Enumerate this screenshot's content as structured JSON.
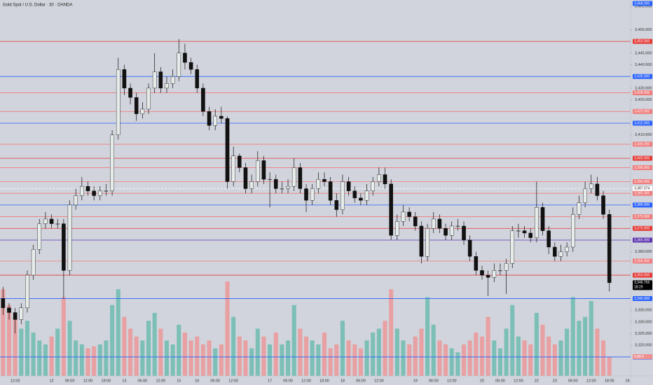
{
  "chart_data": {
    "type": "candlestick",
    "title": "Gold Spot / U.S. Dollar · 30 · OANDA",
    "ylim": [
      3306.9,
      3467.7
    ],
    "up_color": "#e6ece9",
    "down_color": "#111111",
    "yticks": [
      {
        "value": 3465,
        "label": "3,465.000"
      },
      {
        "value": 3455,
        "label": "3,455.000"
      },
      {
        "value": 3445,
        "label": "3,445.000"
      },
      {
        "value": 3440,
        "label": "3,440.000"
      },
      {
        "value": 3430,
        "label": "3,430.000"
      },
      {
        "value": 3425,
        "label": "3,425.000"
      },
      {
        "value": 3410,
        "label": "3,410.000"
      },
      {
        "value": 3360,
        "label": "3,360.000"
      },
      {
        "value": 3335,
        "label": "3,335.000"
      },
      {
        "value": 3330,
        "label": "3,330.000"
      },
      {
        "value": 3325,
        "label": "3,325.000"
      },
      {
        "value": 3320,
        "label": "3,320.000"
      }
    ],
    "levels": [
      {
        "value": 3468,
        "label": "3,468.000",
        "color": "#2962ff"
      },
      {
        "value": 3450,
        "label": "3,450.000",
        "color": "#e53935"
      },
      {
        "value": 3435,
        "label": "3,435.000",
        "color": "#2962ff"
      },
      {
        "value": 3428,
        "label": "3,428.000",
        "color": "#ef7b7b"
      },
      {
        "value": 3420,
        "label": "3,420.000",
        "color": "#ef7b7b"
      },
      {
        "value": 3415,
        "label": "3,415.000",
        "color": "#2962ff"
      },
      {
        "value": 3406,
        "label": "3,406.000",
        "color": "#ef7b7b"
      },
      {
        "value": 3400,
        "label": "3,400.000",
        "color": "#e53935"
      },
      {
        "value": 3396,
        "label": "3,396.000",
        "color": "#ef7b7b"
      },
      {
        "value": 3390,
        "label": "3,390.000",
        "color": "#ef7b7b"
      },
      {
        "value": 3385,
        "label": "3,385.000",
        "color": "#ef7b7b"
      },
      {
        "value": 3380,
        "label": "3,380.000",
        "color": "#2962ff"
      },
      {
        "value": 3375,
        "label": "3,375.000",
        "color": "#ef7b7b"
      },
      {
        "value": 3370,
        "label": "3,370.000",
        "color": "#e53935"
      },
      {
        "value": 3365,
        "label": "3,365.000",
        "color": "#5e35b1"
      },
      {
        "value": 3356,
        "label": "3,356.000",
        "color": "#ef7b7b"
      },
      {
        "value": 3350,
        "label": "3,350.000",
        "color": "#e53935"
      },
      {
        "value": 3340,
        "label": "3,340.000",
        "color": "#2962ff"
      },
      {
        "value": 3315,
        "label": "3,315.000",
        "color": "#2962ff"
      }
    ],
    "bid_line": {
      "value": 3387.074,
      "label": "3,387.074"
    },
    "price_tag": {
      "value": 3346.755,
      "label": "3,346.755",
      "countdown": "18:29"
    },
    "x": [
      null,
      null,
      "12:00",
      null,
      null,
      null,
      null,
      null,
      "12",
      null,
      null,
      "06:00",
      null,
      null,
      "12:00",
      null,
      null,
      "18:00",
      null,
      null,
      "13",
      null,
      null,
      "06:00",
      null,
      null,
      "12:00",
      null,
      null,
      "15",
      null,
      null,
      "16",
      null,
      null,
      "06:00",
      null,
      null,
      "12:00",
      null,
      null,
      null,
      null,
      null,
      "17",
      null,
      null,
      "06:00",
      null,
      null,
      "12:00",
      null,
      null,
      "18:00",
      null,
      null,
      "18",
      null,
      null,
      "06:00",
      null,
      null,
      "12:00",
      null,
      null,
      null,
      null,
      null,
      "19",
      null,
      null,
      "06:00",
      null,
      null,
      "12:00",
      null,
      null,
      null,
      null,
      "20",
      null,
      null,
      "06:00",
      null,
      null,
      "12:00",
      null,
      null,
      "22",
      null,
      null,
      "23",
      null,
      null,
      "06:00",
      null,
      null,
      "12:00",
      null,
      null,
      "18:00",
      null,
      null,
      "24"
    ],
    "candles": [
      [
        3340,
        3345,
        3333,
        3336
      ],
      [
        3336,
        3338,
        3331,
        3334
      ],
      [
        3334,
        3336,
        3325,
        3331
      ],
      [
        3331,
        3338,
        3329,
        3336
      ],
      [
        3336,
        3352,
        3334,
        3350
      ],
      [
        3350,
        3363,
        3348,
        3361
      ],
      [
        3361,
        3374,
        3359,
        3372
      ],
      [
        3372,
        3377,
        3370,
        3374
      ],
      [
        3374,
        3376,
        3370,
        3372
      ],
      [
        3372,
        3374,
        3370,
        3372
      ],
      [
        3372,
        3374,
        3340,
        3352
      ],
      [
        3352,
        3382,
        3350,
        3380
      ],
      [
        3380,
        3387,
        3378,
        3384
      ],
      [
        3384,
        3392,
        3382,
        3388
      ],
      [
        3388,
        3390,
        3384,
        3386
      ],
      [
        3386,
        3388,
        3382,
        3384
      ],
      [
        3384,
        3388,
        3382,
        3386
      ],
      [
        3386,
        3389,
        3384,
        3386
      ],
      [
        3386,
        3412,
        3384,
        3410
      ],
      [
        3410,
        3443,
        3408,
        3438
      ],
      [
        3438,
        3440,
        3427,
        3430
      ],
      [
        3430,
        3432,
        3423,
        3426
      ],
      [
        3426,
        3428,
        3416,
        3419
      ],
      [
        3419,
        3424,
        3417,
        3421
      ],
      [
        3421,
        3432,
        3419,
        3430
      ],
      [
        3430,
        3445,
        3428,
        3437
      ],
      [
        3437,
        3439,
        3428,
        3430
      ],
      [
        3430,
        3435,
        3428,
        3432
      ],
      [
        3432,
        3438,
        3430,
        3435
      ],
      [
        3435,
        3451,
        3433,
        3445
      ],
      [
        3445,
        3449,
        3438,
        3441
      ],
      [
        3441,
        3443,
        3436,
        3438
      ],
      [
        3438,
        3440,
        3428,
        3430
      ],
      [
        3430,
        3432,
        3418,
        3420
      ],
      [
        3420,
        3422,
        3412,
        3414
      ],
      [
        3414,
        3421,
        3412,
        3418
      ],
      [
        3418,
        3422,
        3415,
        3417
      ],
      [
        3417,
        3418,
        3387,
        3390
      ],
      [
        3390,
        3405,
        3388,
        3401
      ],
      [
        3401,
        3402,
        3394,
        3396
      ],
      [
        3396,
        3398,
        3385,
        3387
      ],
      [
        3387,
        3393,
        3385,
        3390
      ],
      [
        3390,
        3403,
        3388,
        3399
      ],
      [
        3399,
        3401,
        3389,
        3391
      ],
      [
        3391,
        3394,
        3379,
        3391
      ],
      [
        3391,
        3393,
        3385,
        3387
      ],
      [
        3387,
        3390,
        3385,
        3387
      ],
      [
        3387,
        3391,
        3385,
        3388
      ],
      [
        3388,
        3400,
        3386,
        3396
      ],
      [
        3396,
        3398,
        3385,
        3387
      ],
      [
        3387,
        3389,
        3377,
        3382
      ],
      [
        3382,
        3389,
        3380,
        3387
      ],
      [
        3387,
        3394,
        3385,
        3391
      ],
      [
        3391,
        3394,
        3388,
        3390
      ],
      [
        3390,
        3392,
        3380,
        3382
      ],
      [
        3382,
        3385,
        3375,
        3378
      ],
      [
        3378,
        3393,
        3376,
        3390
      ],
      [
        3390,
        3392,
        3384,
        3386
      ],
      [
        3386,
        3388,
        3381,
        3383
      ],
      [
        3383,
        3385,
        3380,
        3382
      ],
      [
        3382,
        3389,
        3380,
        3386
      ],
      [
        3386,
        3392,
        3384,
        3390
      ],
      [
        3390,
        3396,
        3388,
        3393
      ],
      [
        3393,
        3396,
        3387,
        3389
      ],
      [
        3389,
        3391,
        3365,
        3367
      ],
      [
        3367,
        3376,
        3365,
        3373
      ],
      [
        3373,
        3380,
        3371,
        3377
      ],
      [
        3377,
        3379,
        3373,
        3375
      ],
      [
        3375,
        3377,
        3369,
        3371
      ],
      [
        3371,
        3373,
        3355,
        3358
      ],
      [
        3358,
        3372,
        3356,
        3370
      ],
      [
        3370,
        3377,
        3368,
        3374
      ],
      [
        3374,
        3376,
        3368,
        3370
      ],
      [
        3370,
        3372,
        3365,
        3367
      ],
      [
        3367,
        3373,
        3365,
        3371
      ],
      [
        3371,
        3374,
        3369,
        3371
      ],
      [
        3371,
        3373,
        3363,
        3365
      ],
      [
        3365,
        3367,
        3356,
        3358
      ],
      [
        3358,
        3360,
        3350,
        3352
      ],
      [
        3352,
        3354,
        3348,
        3350
      ],
      [
        3350,
        3352,
        3341,
        3349
      ],
      [
        3349,
        3355,
        3347,
        3352
      ],
      [
        3352,
        3355,
        3350,
        3352
      ],
      [
        3352,
        3357,
        3342,
        3355
      ],
      [
        3355,
        3371,
        3353,
        3369
      ],
      [
        3369,
        3372,
        3366,
        3369
      ],
      [
        3369,
        3371,
        3366,
        3368
      ],
      [
        3368,
        3370,
        3364,
        3366
      ],
      [
        3366,
        3390,
        3364,
        3379
      ],
      [
        3379,
        3381,
        3367,
        3369
      ],
      [
        3369,
        3371,
        3359,
        3362
      ],
      [
        3362,
        3364,
        3356,
        3358
      ],
      [
        3358,
        3363,
        3356,
        3360
      ],
      [
        3360,
        3364,
        3358,
        3362
      ],
      [
        3362,
        3379,
        3360,
        3376
      ],
      [
        3376,
        3384,
        3374,
        3381
      ],
      [
        3381,
        3390,
        3379,
        3387
      ],
      [
        3387,
        3393,
        3385,
        3389
      ],
      [
        3389,
        3392,
        3382,
        3384
      ],
      [
        3384,
        3386,
        3374,
        3376
      ],
      [
        3376,
        3378,
        3343,
        3346.755
      ],
      null,
      null,
      null
    ],
    "volume": {
      "up_color": "#5fb8ab",
      "down_color": "#ef8f8f",
      "last_label": "4.88 K",
      "values": [
        22000,
        18000,
        15000,
        12000,
        14000,
        11000,
        9000,
        8000,
        10000,
        12000,
        20000,
        14000,
        9000,
        8000,
        7000,
        7500,
        8000,
        9000,
        18000,
        22000,
        15000,
        12000,
        10000,
        9000,
        14000,
        16000,
        12000,
        9000,
        8000,
        13000,
        11000,
        9000,
        10000,
        8000,
        9000,
        7000,
        8000,
        24000,
        15000,
        10000,
        9000,
        7000,
        12000,
        10000,
        8000,
        11000,
        8000,
        9000,
        18000,
        12000,
        10000,
        9000,
        8000,
        11000,
        7000,
        8000,
        14000,
        9000,
        8000,
        7000,
        9000,
        11000,
        12000,
        14000,
        22000,
        12000,
        9000,
        8000,
        10000,
        12000,
        20000,
        13000,
        9000,
        8000,
        7000,
        6000,
        8000,
        9000,
        11000,
        10000,
        15000,
        9000,
        7000,
        12000,
        18000,
        10000,
        9000,
        8000,
        16000,
        13000,
        10000,
        8000,
        9000,
        12000,
        20000,
        14000,
        15000,
        19000,
        12000,
        9000,
        4880,
        null,
        null,
        null
      ]
    }
  }
}
